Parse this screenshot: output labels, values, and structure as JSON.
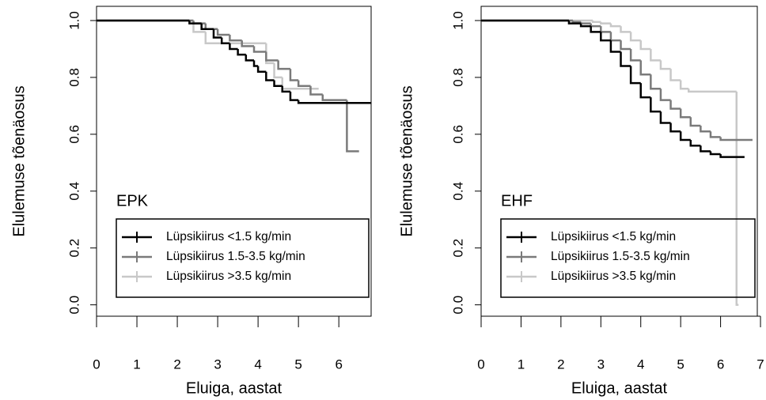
{
  "chart_data": [
    {
      "type": "step",
      "annotation": "EPK",
      "xlabel": "Eluiga, aastat",
      "ylabel": "Elulemuse tõenäosus",
      "xlim": [
        0,
        6.8
      ],
      "ylim": [
        -0.04,
        1.05
      ],
      "xticks": [
        0,
        1,
        2,
        3,
        4,
        5,
        6
      ],
      "yticks": [
        {
          "value": 0,
          "label": "0.0"
        },
        0.2,
        0.4,
        0.6,
        0.8,
        {
          "value": 1,
          "label": "1.0"
        }
      ],
      "series": [
        {
          "name": "Lüpsikiirus <1.5 kg/min",
          "color": "#000000",
          "x": [
            0,
            2.3,
            2.6,
            2.9,
            3.1,
            3.3,
            3.5,
            3.7,
            3.9,
            4.0,
            4.2,
            4.4,
            4.6,
            4.8,
            5.0,
            6.8
          ],
          "values": [
            1.0,
            0.99,
            0.97,
            0.94,
            0.92,
            0.9,
            0.88,
            0.86,
            0.84,
            0.82,
            0.79,
            0.77,
            0.75,
            0.72,
            0.71,
            0.71
          ]
        },
        {
          "name": "Lüpsikiirus 1.5-3.5 kg/min",
          "color": "#7a7a7a",
          "x": [
            0,
            2.4,
            2.7,
            3.0,
            3.3,
            3.6,
            3.9,
            4.2,
            4.5,
            4.8,
            5.0,
            5.3,
            5.6,
            6.2,
            6.5
          ],
          "values": [
            1.0,
            0.99,
            0.97,
            0.95,
            0.93,
            0.91,
            0.89,
            0.86,
            0.83,
            0.79,
            0.77,
            0.74,
            0.72,
            0.54,
            0.54
          ]
        },
        {
          "name": "Lüpsikiirus >3.5 kg/min",
          "color": "#c8c8c8",
          "x": [
            0,
            2.4,
            2.7,
            4.2,
            4.4,
            4.6,
            5.5
          ],
          "values": [
            1.0,
            0.96,
            0.92,
            0.85,
            0.8,
            0.76,
            0.76
          ]
        }
      ]
    },
    {
      "type": "step",
      "annotation": "EHF",
      "xlabel": "Eluiga, aastat",
      "ylabel": "Elulemuse tõenäosus",
      "xlim": [
        0,
        6.92
      ],
      "ylim": [
        -0.04,
        1.05
      ],
      "xticks": [
        0,
        1,
        2,
        3,
        4,
        5,
        6,
        7
      ],
      "yticks": [
        {
          "value": 0,
          "label": "0.0"
        },
        0.2,
        0.4,
        0.6,
        0.8,
        {
          "value": 1,
          "label": "1.0"
        }
      ],
      "series": [
        {
          "name": "Lüpsikiirus <1.5 kg/min",
          "color": "#000000",
          "x": [
            0,
            2.2,
            2.5,
            2.75,
            3.0,
            3.25,
            3.5,
            3.75,
            4.0,
            4.25,
            4.5,
            4.75,
            5.0,
            5.25,
            5.5,
            5.75,
            6.0,
            6.6
          ],
          "values": [
            1.0,
            0.99,
            0.98,
            0.96,
            0.93,
            0.89,
            0.84,
            0.78,
            0.73,
            0.68,
            0.64,
            0.61,
            0.58,
            0.56,
            0.54,
            0.53,
            0.52,
            0.52
          ]
        },
        {
          "name": "Lüpsikiirus 1.5-3.5 kg/min",
          "color": "#7a7a7a",
          "x": [
            0,
            2.3,
            2.5,
            2.75,
            3.0,
            3.25,
            3.5,
            3.75,
            4.0,
            4.25,
            4.5,
            4.75,
            5.0,
            5.25,
            5.5,
            5.75,
            6.0,
            6.8
          ],
          "values": [
            1.0,
            0.995,
            0.99,
            0.98,
            0.96,
            0.93,
            0.9,
            0.86,
            0.81,
            0.76,
            0.72,
            0.69,
            0.66,
            0.63,
            0.61,
            0.59,
            0.58,
            0.58
          ]
        },
        {
          "name": "Lüpsikiirus >3.5 kg/min",
          "color": "#c8c8c8",
          "x": [
            0,
            2.8,
            3.0,
            3.25,
            3.5,
            3.75,
            4.0,
            4.25,
            4.5,
            4.75,
            5.0,
            5.2,
            6.4,
            6.45
          ],
          "values": [
            1.0,
            0.995,
            0.99,
            0.98,
            0.96,
            0.93,
            0.9,
            0.86,
            0.83,
            0.79,
            0.76,
            0.75,
            0.0,
            0.0
          ]
        }
      ]
    }
  ]
}
